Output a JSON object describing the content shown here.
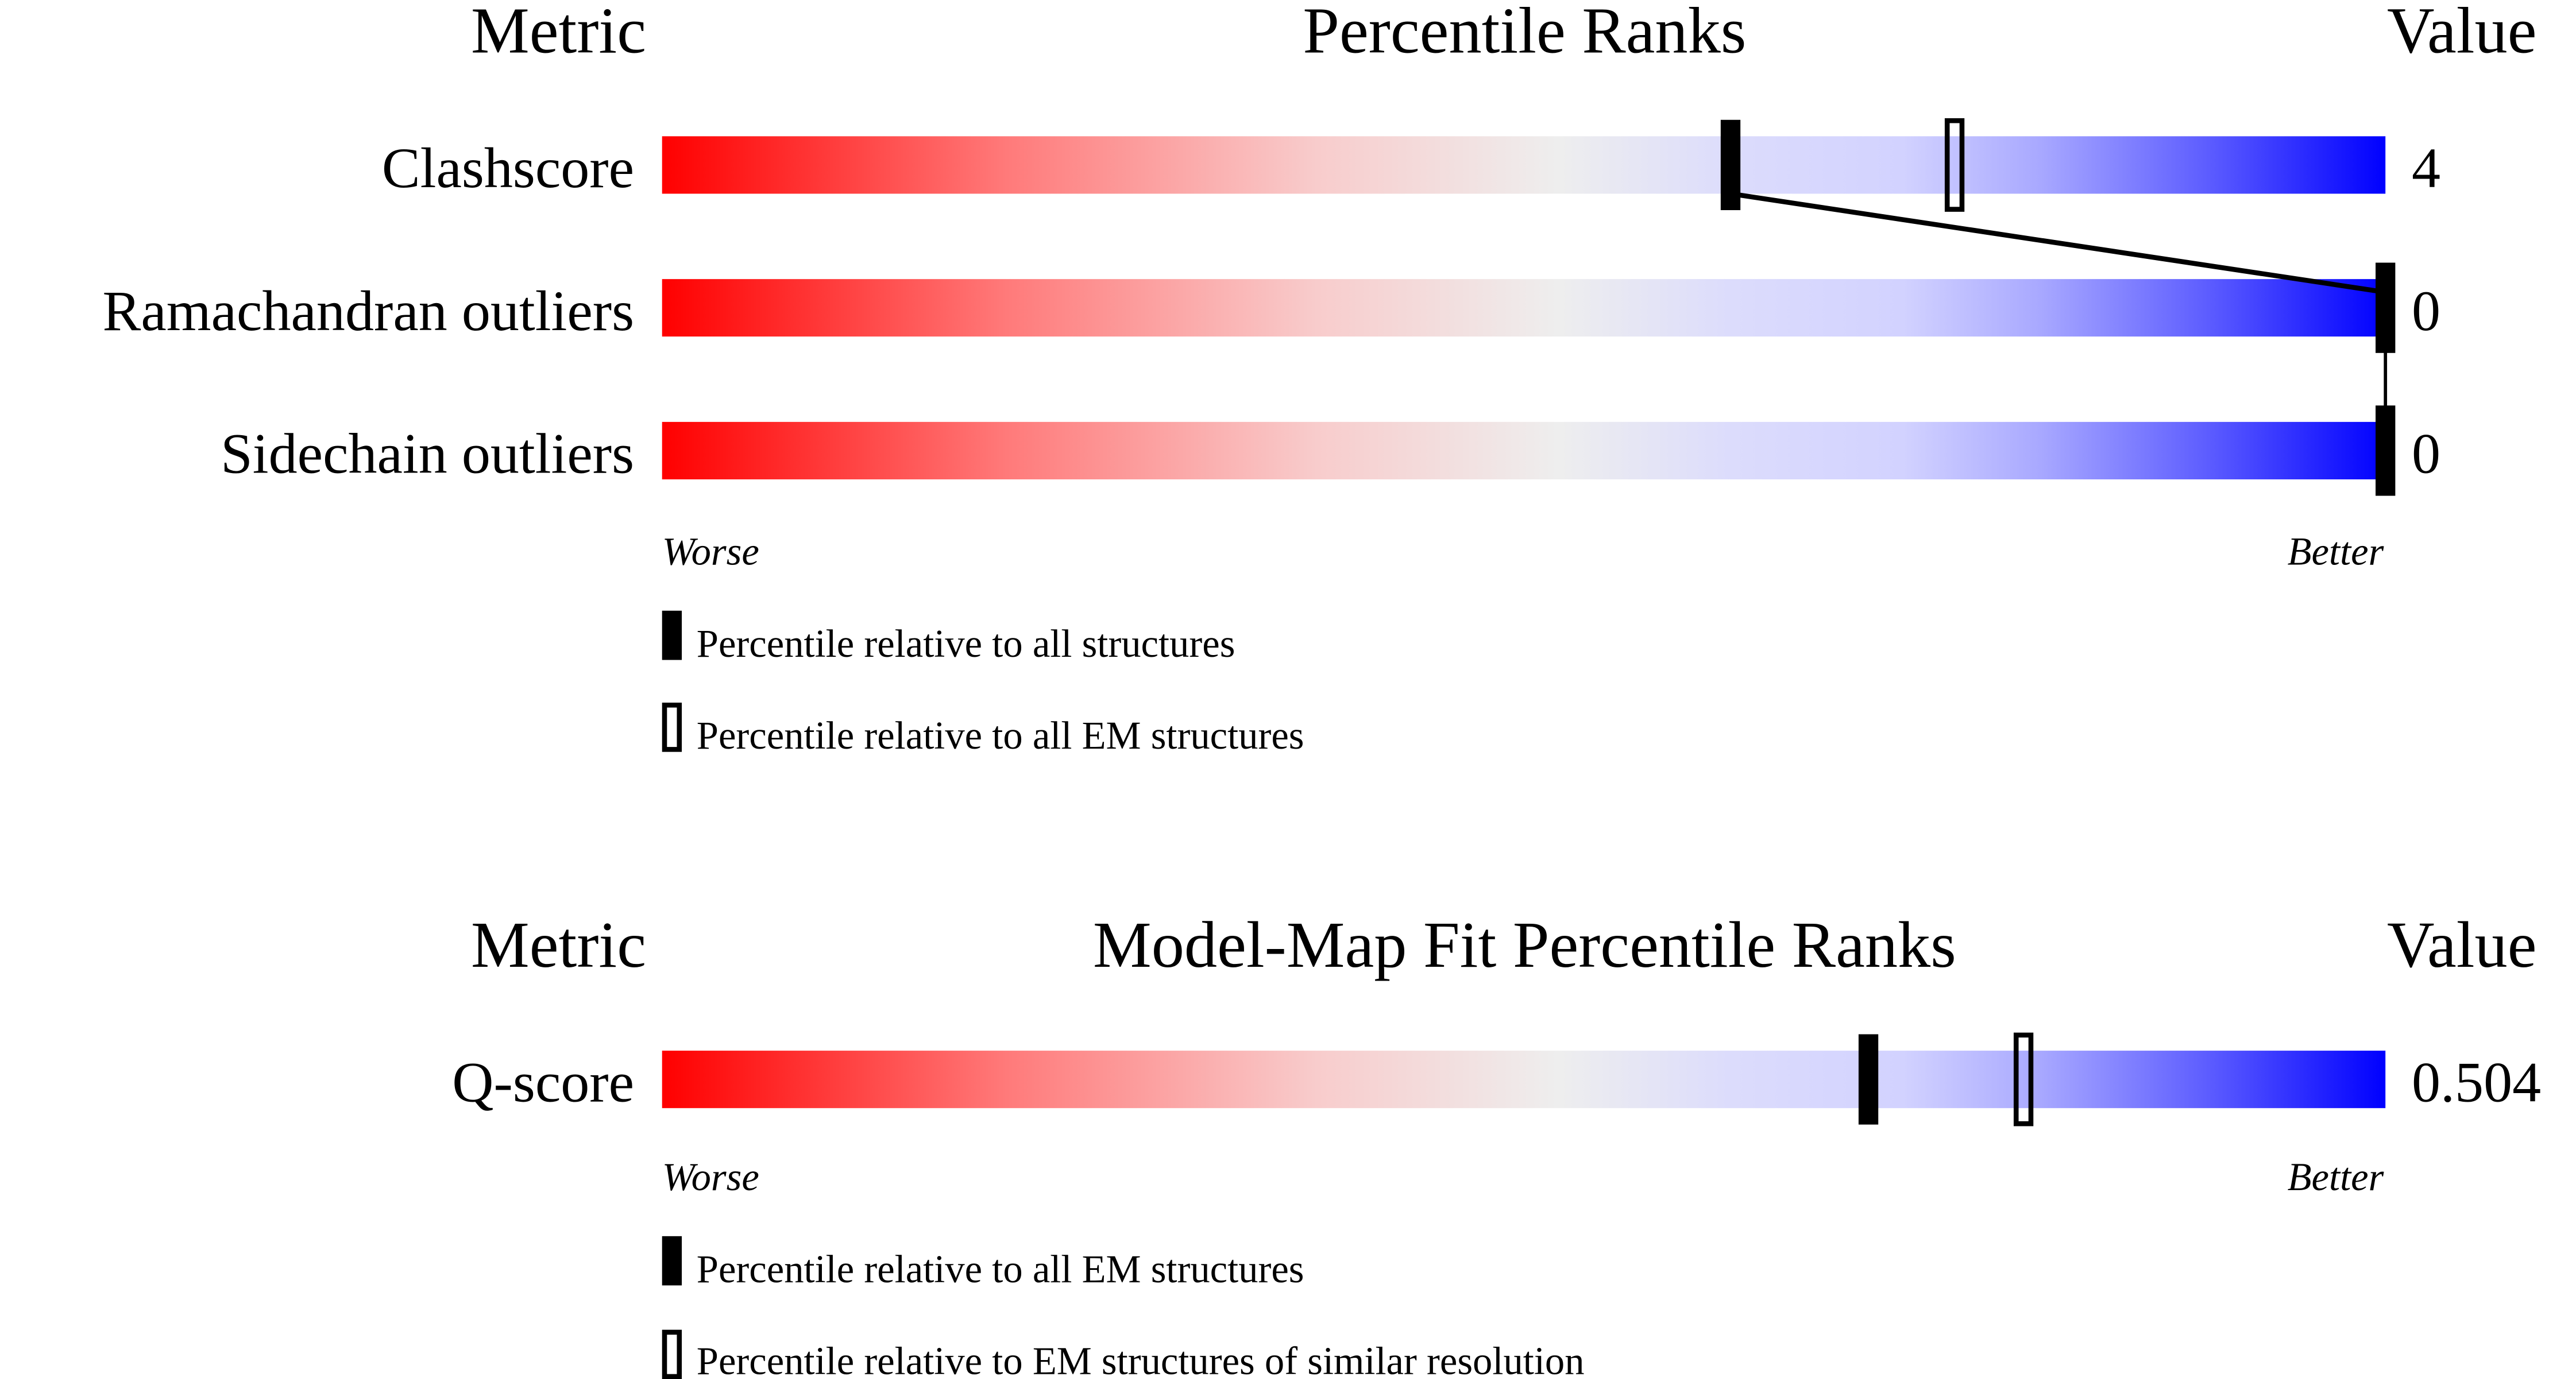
{
  "chart_data": [
    {
      "type": "percentile-slider",
      "header": {
        "metric": "Metric",
        "title": "Percentile Ranks",
        "value": "Value"
      },
      "rows": [
        {
          "metric": "Clashscore",
          "value": "4",
          "percentile_all": 62,
          "percentile_secondary": 75
        },
        {
          "metric": "Ramachandran outliers",
          "value": "0",
          "percentile_all": 100,
          "percentile_secondary": null
        },
        {
          "metric": "Sidechain outliers",
          "value": "0",
          "percentile_all": 100,
          "percentile_secondary": null
        }
      ],
      "worse_label": "Worse",
      "better_label": "Better",
      "legend": [
        {
          "marker": "filled",
          "label": "Percentile relative to all structures"
        },
        {
          "marker": "open",
          "label": "Percentile relative to all EM structures"
        }
      ],
      "connect_filled_markers": true
    },
    {
      "type": "percentile-slider",
      "header": {
        "metric": "Metric",
        "title": "Model-Map Fit Percentile Ranks",
        "value": "Value"
      },
      "rows": [
        {
          "metric": "Q-score",
          "value": "0.504",
          "percentile_all": 70,
          "percentile_secondary": 79
        }
      ],
      "worse_label": "Worse",
      "better_label": "Better",
      "legend": [
        {
          "marker": "filled",
          "label": "Percentile relative to all EM structures"
        },
        {
          "marker": "open",
          "label": "Percentile relative to EM structures of similar resolution"
        }
      ],
      "connect_filled_markers": false
    }
  ],
  "colors": {
    "worse": "#ff0000",
    "middle": "#eeeeee",
    "better": "#0000ff"
  }
}
